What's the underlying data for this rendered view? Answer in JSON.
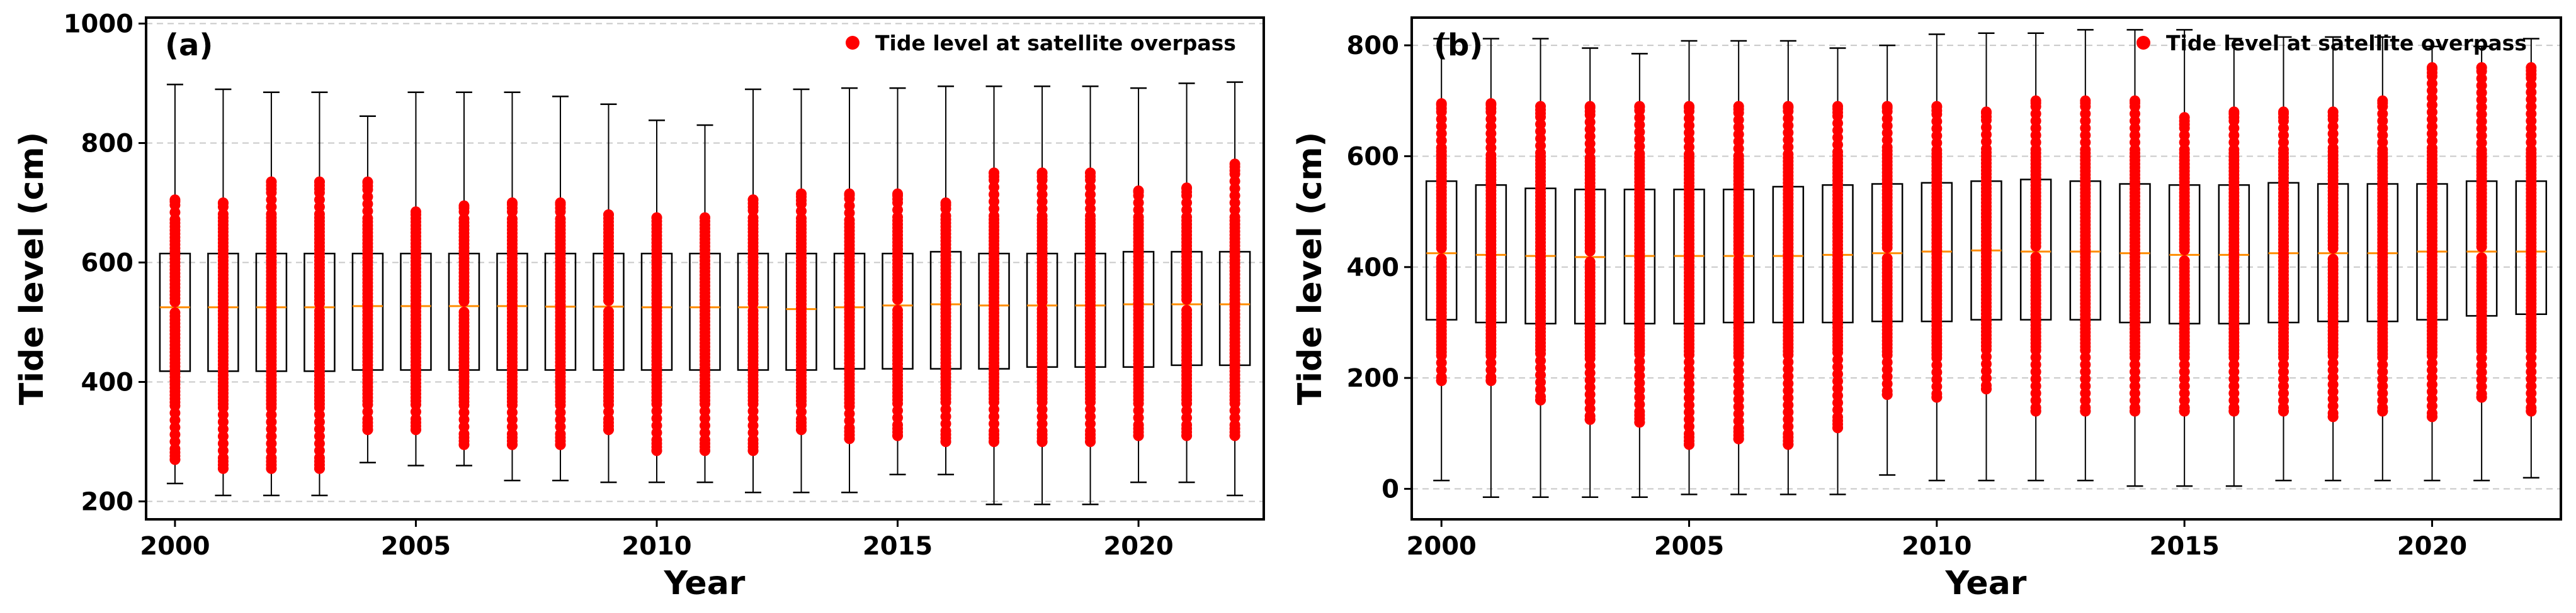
{
  "chart_data": [
    {
      "type": "box",
      "panel_label": "(a)",
      "xlabel": "Year",
      "ylabel": "Tide level (cm)",
      "xlim": [
        1999.4,
        2022.6
      ],
      "ylim": [
        170,
        1010
      ],
      "x_ticks": [
        2000,
        2005,
        2010,
        2015,
        2020
      ],
      "y_ticks": [
        200,
        400,
        600,
        800,
        1000
      ],
      "grid": "horizontal dashed",
      "legend": {
        "label": "Tide level at satellite overpass",
        "position": "top-right",
        "color": "#ff0000"
      },
      "years": [
        2000,
        2001,
        2002,
        2003,
        2004,
        2005,
        2006,
        2007,
        2008,
        2009,
        2010,
        2011,
        2012,
        2013,
        2014,
        2015,
        2016,
        2017,
        2018,
        2019,
        2020,
        2021,
        2022
      ],
      "box_stats": {
        "whisker_low": [
          230,
          210,
          210,
          210,
          265,
          260,
          260,
          235,
          235,
          232,
          232,
          232,
          215,
          215,
          215,
          245,
          245,
          195,
          195,
          195,
          232,
          232,
          210
        ],
        "q1": [
          418,
          418,
          418,
          418,
          420,
          420,
          420,
          420,
          420,
          420,
          420,
          420,
          420,
          420,
          422,
          422,
          422,
          422,
          425,
          425,
          425,
          428,
          428
        ],
        "median": [
          525,
          525,
          525,
          525,
          527,
          527,
          527,
          527,
          526,
          526,
          525,
          525,
          525,
          522,
          525,
          528,
          530,
          528,
          528,
          528,
          530,
          530,
          530
        ],
        "q3": [
          615,
          615,
          615,
          615,
          615,
          615,
          615,
          615,
          615,
          615,
          615,
          615,
          615,
          615,
          615,
          615,
          618,
          615,
          615,
          615,
          618,
          618,
          618
        ],
        "whisker_high": [
          898,
          890,
          885,
          885,
          845,
          885,
          885,
          885,
          878,
          865,
          838,
          830,
          890,
          890,
          892,
          892,
          895,
          895,
          895,
          895,
          892,
          900,
          902
        ]
      },
      "overpass_range": {
        "min": [
          270,
          255,
          255,
          255,
          320,
          320,
          295,
          295,
          295,
          320,
          285,
          285,
          285,
          320,
          305,
          310,
          300,
          300,
          300,
          300,
          310,
          310,
          310
        ],
        "max": [
          705,
          700,
          735,
          735,
          735,
          685,
          695,
          700,
          700,
          680,
          675,
          675,
          705,
          715,
          715,
          715,
          700,
          750,
          750,
          750,
          720,
          725,
          765
        ]
      }
    },
    {
      "type": "box",
      "panel_label": "(b)",
      "xlabel": "Year",
      "ylabel": "Tide level (cm)",
      "xlim": [
        1999.4,
        2022.6
      ],
      "ylim": [
        -55,
        850
      ],
      "x_ticks": [
        2000,
        2005,
        2010,
        2015,
        2020
      ],
      "y_ticks": [
        0,
        200,
        400,
        600,
        800
      ],
      "grid": "horizontal dashed",
      "legend": {
        "label": "Tide level at satellite overpass",
        "position": "top-right",
        "color": "#ff0000"
      },
      "years": [
        2000,
        2001,
        2002,
        2003,
        2004,
        2005,
        2006,
        2007,
        2008,
        2009,
        2010,
        2011,
        2012,
        2013,
        2014,
        2015,
        2016,
        2017,
        2018,
        2019,
        2020,
        2021,
        2022
      ],
      "box_stats": {
        "whisker_low": [
          15,
          -15,
          -15,
          -15,
          -15,
          -10,
          -10,
          -10,
          -10,
          25,
          15,
          15,
          15,
          15,
          5,
          5,
          5,
          15,
          15,
          15,
          15,
          15,
          20
        ],
        "q1": [
          305,
          300,
          298,
          298,
          298,
          298,
          300,
          300,
          300,
          302,
          302,
          305,
          305,
          305,
          300,
          298,
          298,
          300,
          302,
          302,
          305,
          312,
          315
        ],
        "median": [
          425,
          422,
          420,
          418,
          420,
          420,
          420,
          420,
          422,
          425,
          428,
          430,
          428,
          428,
          425,
          422,
          422,
          425,
          425,
          425,
          428,
          428,
          428
        ],
        "q3": [
          555,
          548,
          542,
          540,
          540,
          540,
          540,
          545,
          548,
          550,
          552,
          555,
          558,
          555,
          550,
          548,
          548,
          552,
          550,
          550,
          550,
          555,
          555
        ],
        "whisker_high": [
          812,
          812,
          812,
          795,
          785,
          808,
          808,
          808,
          795,
          800,
          820,
          822,
          822,
          828,
          828,
          828,
          812,
          815,
          815,
          815,
          798,
          798,
          812
        ]
      },
      "overpass_range": {
        "min": [
          195,
          195,
          160,
          125,
          120,
          80,
          90,
          80,
          110,
          170,
          165,
          180,
          140,
          140,
          140,
          140,
          140,
          140,
          130,
          140,
          130,
          165,
          140
        ],
        "max": [
          695,
          695,
          690,
          690,
          690,
          690,
          690,
          690,
          690,
          690,
          690,
          680,
          700,
          700,
          700,
          670,
          680,
          680,
          680,
          700,
          760,
          760,
          760
        ]
      }
    }
  ]
}
